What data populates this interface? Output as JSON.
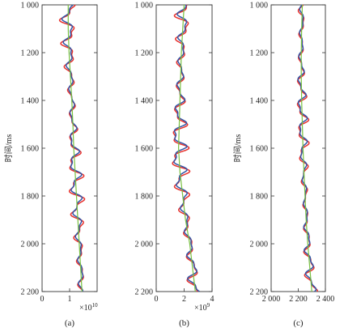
{
  "chart_data": [
    {
      "type": "line",
      "panel_label": "(a)",
      "ylabel": "时间/ms",
      "ylim": [
        2200,
        1000
      ],
      "yticks": [
        1000,
        1200,
        1400,
        1600,
        1800,
        2000,
        2200
      ],
      "ytick_labels": [
        "1 000",
        "1 200",
        "1 400",
        "1 600",
        "1 800",
        "2 000",
        "2 200"
      ],
      "xlim": [
        0,
        2
      ],
      "xticks": [
        0,
        1
      ],
      "xtick_labels": [
        "0",
        "1"
      ],
      "x_exponent": "×10",
      "x_exponent_power": "10",
      "grid": false,
      "series": [
        {
          "color": "#e8322d",
          "amp": 0.3,
          "seed": 1.0,
          "x": [
            0.95,
            0.95,
            0.98,
            1.03,
            1.08,
            1.12,
            1.15,
            1.2,
            1.25,
            1.3,
            1.35,
            1.4,
            1.45
          ]
        },
        {
          "color": "#3255a6",
          "amp": 0.22,
          "seed": 1.3,
          "x": [
            0.95,
            0.95,
            0.98,
            1.03,
            1.08,
            1.12,
            1.15,
            1.2,
            1.25,
            1.3,
            1.35,
            1.4,
            1.45
          ]
        },
        {
          "color": "#78c040",
          "amp": 0.0,
          "seed": 0,
          "x": [
            0.95,
            0.95,
            0.98,
            1.03,
            1.08,
            1.12,
            1.15,
            1.2,
            1.25,
            1.3,
            1.35,
            1.4,
            1.45
          ]
        }
      ]
    },
    {
      "type": "line",
      "panel_label": "(b)",
      "ylabel": "",
      "ylim": [
        2200,
        1000
      ],
      "yticks": [
        1000,
        1200,
        1400,
        1600,
        1800,
        2000,
        2200
      ],
      "ytick_labels": [
        "1 000",
        "1 200",
        "1 400",
        "1 600",
        "1 800",
        "2 000",
        "2 200"
      ],
      "xlim": [
        0,
        4
      ],
      "xticks": [
        0,
        2,
        4
      ],
      "xtick_labels": [
        "0",
        "2",
        "4"
      ],
      "x_exponent": "×10",
      "x_exponent_power": "9",
      "grid": false,
      "series": [
        {
          "color": "#e8322d",
          "amp": 0.7,
          "seed": 2.1,
          "x": [
            2.0,
            1.9,
            1.8,
            1.75,
            1.7,
            1.65,
            1.6,
            1.7,
            1.9,
            2.1,
            2.4,
            2.6,
            2.8
          ]
        },
        {
          "color": "#3255a6",
          "amp": 0.55,
          "seed": 2.5,
          "x": [
            2.0,
            1.9,
            1.8,
            1.75,
            1.7,
            1.65,
            1.6,
            1.7,
            1.9,
            2.1,
            2.4,
            2.6,
            2.8
          ]
        },
        {
          "color": "#78c040",
          "amp": 0.0,
          "seed": 0,
          "x": [
            2.0,
            1.9,
            1.8,
            1.75,
            1.7,
            1.65,
            1.6,
            1.7,
            1.9,
            2.1,
            2.4,
            2.6,
            2.8
          ]
        }
      ]
    },
    {
      "type": "line",
      "panel_label": "(c)",
      "ylabel": "时间/ms",
      "ylim": [
        2200,
        1000
      ],
      "yticks": [
        1000,
        1200,
        1400,
        1600,
        1800,
        2000,
        2200
      ],
      "ytick_labels": [
        "1 000",
        "1 200",
        "1 400",
        "1 600",
        "1 800",
        "2 000",
        "2 200"
      ],
      "xlim": [
        2000,
        2400
      ],
      "xticks": [
        2000,
        2200,
        2400
      ],
      "xtick_labels": [
        "2 000",
        "2 200",
        "2 400"
      ],
      "x_exponent": "",
      "x_exponent_power": "",
      "grid": false,
      "series": [
        {
          "color": "#e8322d",
          "amp": 45,
          "seed": 3.3,
          "x": [
            2230,
            2225,
            2222,
            2222,
            2225,
            2230,
            2235,
            2242,
            2250,
            2258,
            2270,
            2285,
            2300
          ]
        },
        {
          "color": "#3255a6",
          "amp": 35,
          "seed": 3.7,
          "x": [
            2230,
            2225,
            2222,
            2222,
            2225,
            2230,
            2235,
            2242,
            2250,
            2258,
            2270,
            2285,
            2300
          ]
        },
        {
          "color": "#78c040",
          "amp": 0,
          "seed": 0,
          "x": [
            2230,
            2225,
            2222,
            2222,
            2225,
            2230,
            2235,
            2242,
            2250,
            2258,
            2270,
            2285,
            2300
          ]
        }
      ]
    }
  ]
}
